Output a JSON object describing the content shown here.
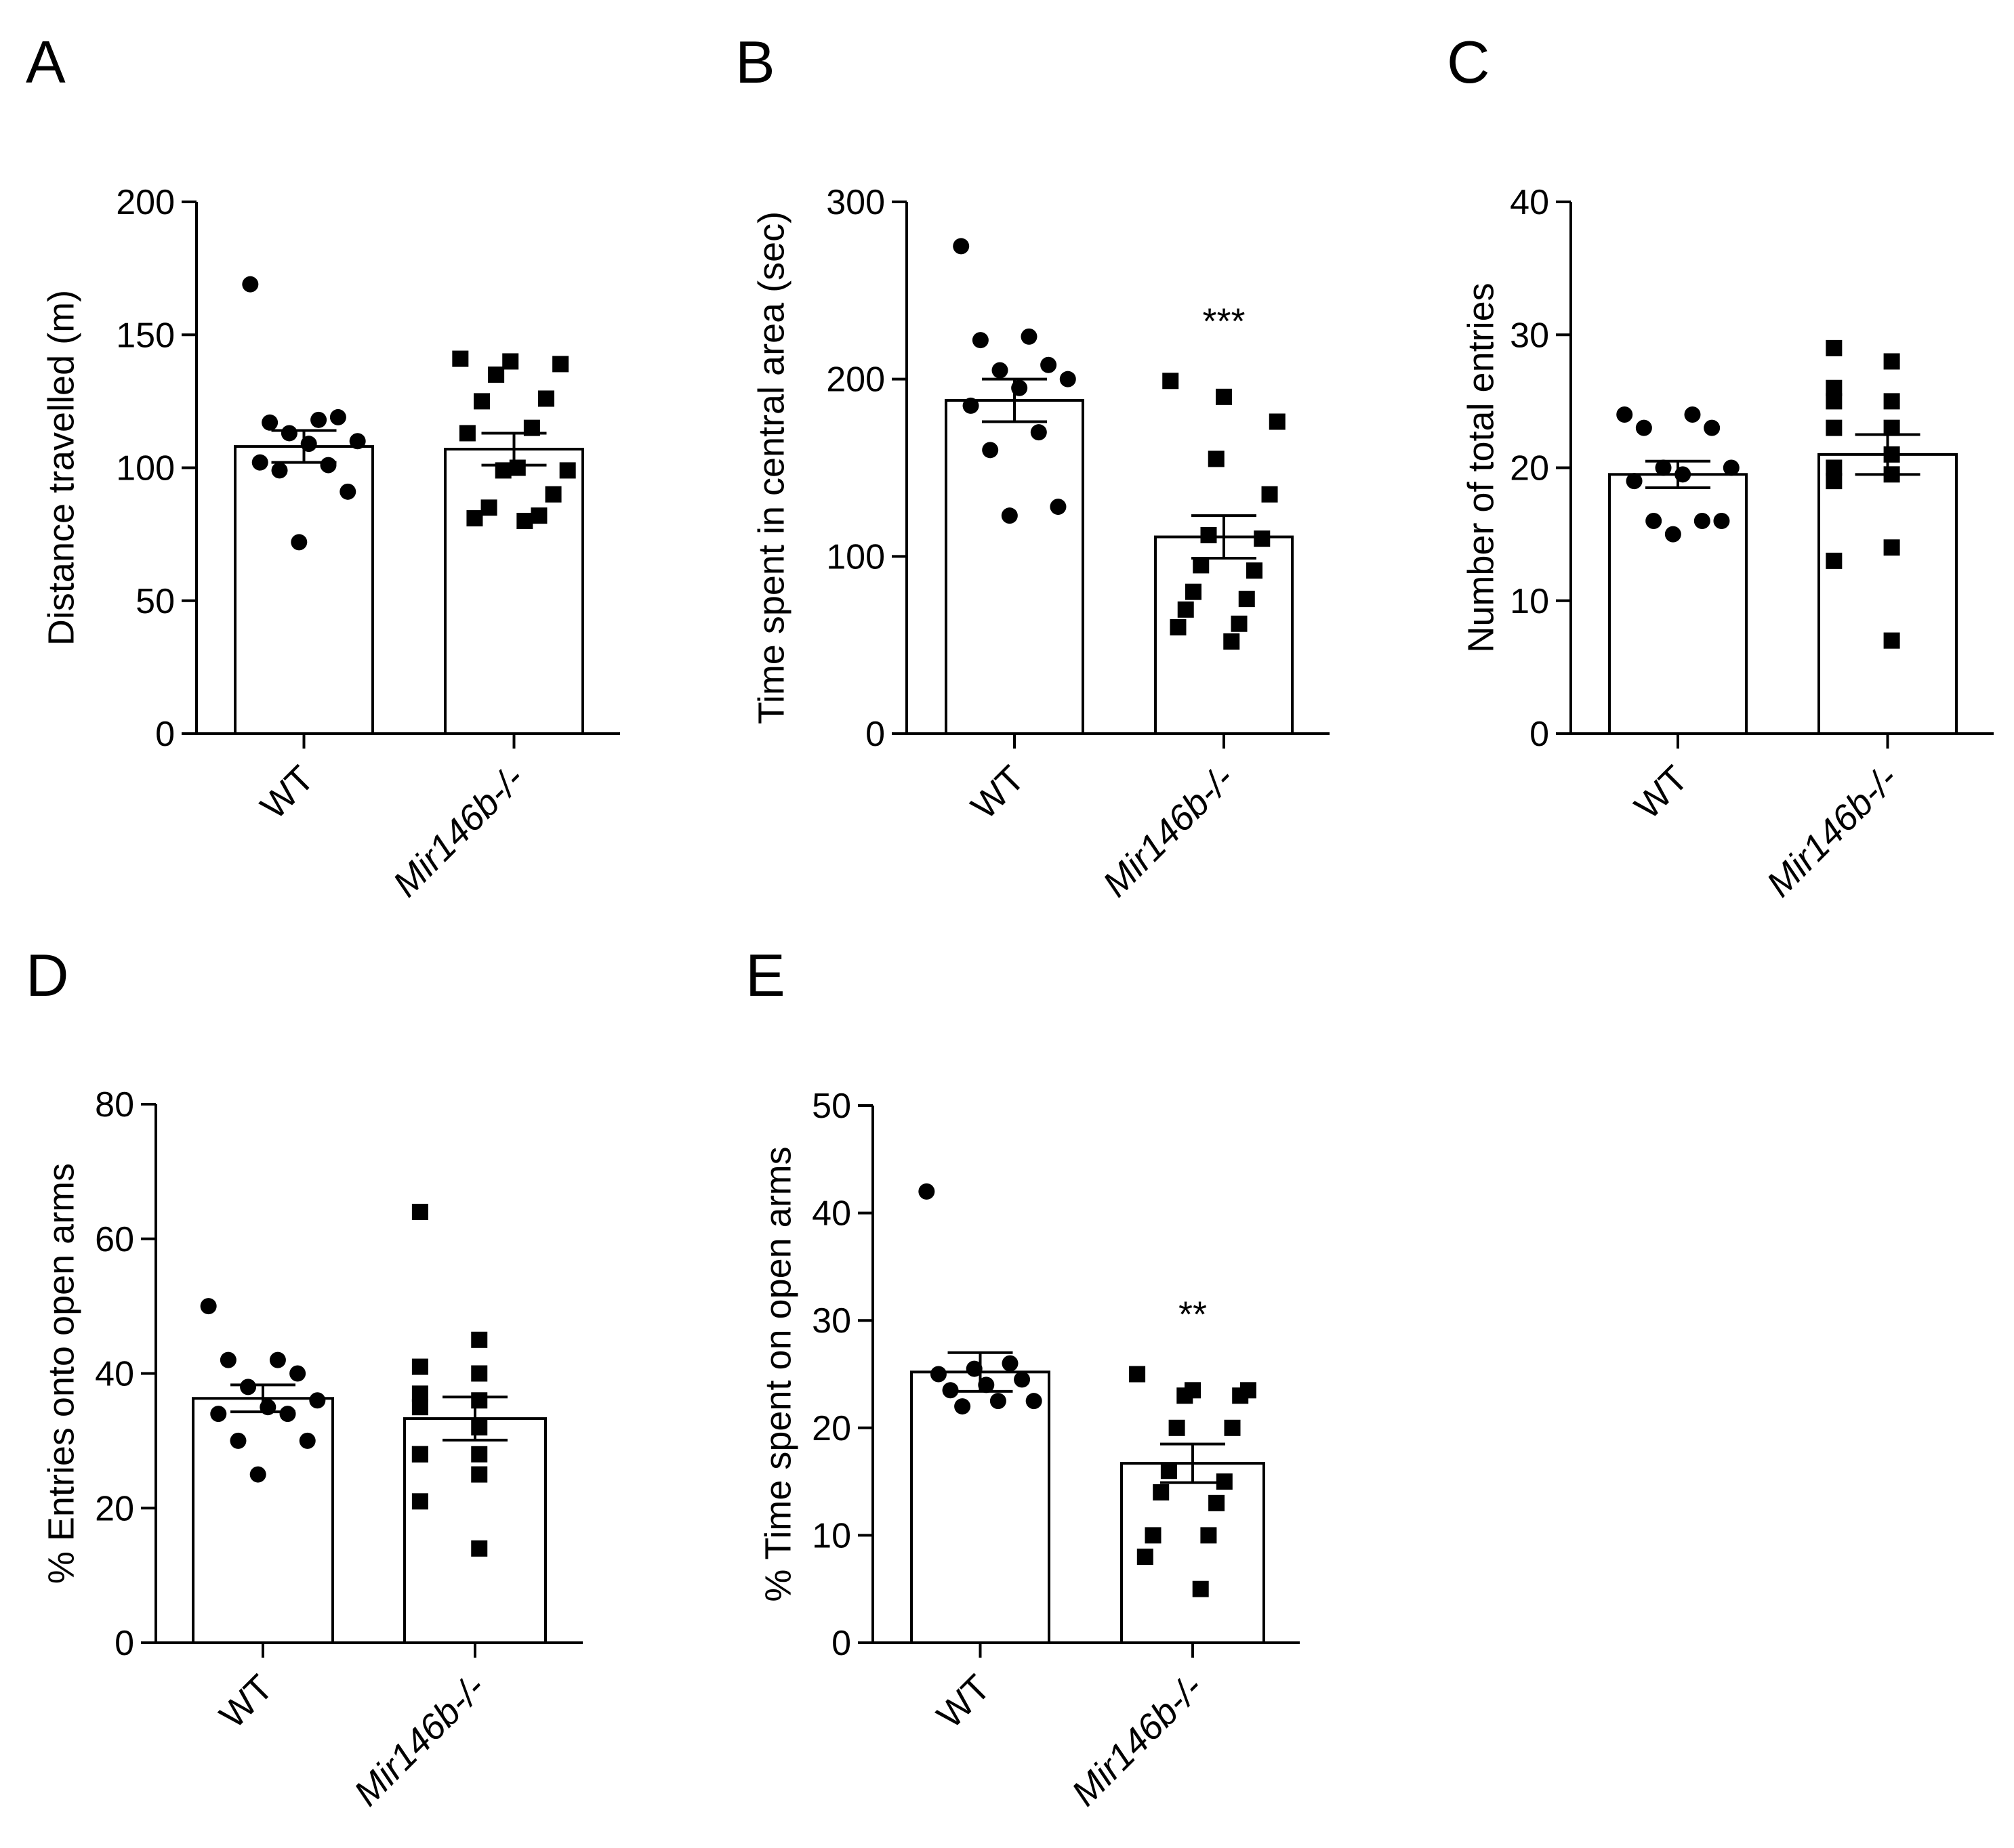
{
  "chart_data": [
    {
      "type": "bar",
      "panel": "A",
      "ylabel": "Distance travelled (m)",
      "ylim": [
        0,
        200
      ],
      "yticks": [
        0,
        50,
        100,
        150,
        200
      ],
      "categories": [
        "WT",
        "Mir146b-/-"
      ],
      "values": [
        108,
        107
      ],
      "sem": [
        6,
        6
      ],
      "significance": [
        "",
        ""
      ],
      "points": [
        [
          169,
          118,
          117,
          119,
          113,
          110,
          109,
          102,
          101,
          99,
          91,
          72
        ],
        [
          141,
          140,
          139,
          135,
          126,
          125,
          115,
          113,
          100,
          99,
          99,
          90,
          85,
          82,
          81,
          80
        ]
      ]
    },
    {
      "type": "bar",
      "panel": "B",
      "ylabel": "Time spent in central area (sec)",
      "ylim": [
        0,
        300
      ],
      "yticks": [
        0,
        100,
        200,
        300
      ],
      "categories": [
        "WT",
        "Mir146b-/-"
      ],
      "values": [
        188,
        111
      ],
      "sem": [
        12,
        12
      ],
      "significance": [
        "",
        "***"
      ],
      "points": [
        [
          275,
          224,
          222,
          208,
          205,
          200,
          195,
          185,
          170,
          160,
          128,
          123
        ],
        [
          199,
          190,
          176,
          155,
          135,
          112,
          110,
          95,
          92,
          80,
          76,
          70,
          62,
          60,
          52
        ]
      ]
    },
    {
      "type": "bar",
      "panel": "C",
      "ylabel": "Number of total entries",
      "ylim": [
        0,
        40
      ],
      "yticks": [
        0,
        10,
        20,
        30,
        40
      ],
      "categories": [
        "WT",
        "Mir146b-/-"
      ],
      "values": [
        19.5,
        21
      ],
      "sem": [
        1,
        1.5
      ],
      "significance": [
        "",
        ""
      ],
      "points": [
        [
          24,
          24,
          23,
          23,
          20,
          20,
          19.5,
          19,
          16,
          16,
          16,
          15
        ],
        [
          29,
          28,
          26,
          25,
          25,
          23,
          23,
          21,
          20,
          19.5,
          19,
          14,
          13,
          7
        ]
      ]
    },
    {
      "type": "bar",
      "panel": "D",
      "ylabel": "% Entries onto open arms",
      "ylim": [
        0,
        80
      ],
      "yticks": [
        0,
        20,
        40,
        60,
        80
      ],
      "categories": [
        "WT",
        "Mir146b-/-"
      ],
      "values": [
        36.3,
        33.3
      ],
      "sem": [
        2,
        3.2
      ],
      "significance": [
        "",
        ""
      ],
      "points": [
        [
          50,
          42,
          42,
          40,
          38,
          36,
          35,
          34,
          34,
          30,
          30,
          25
        ],
        [
          64,
          45,
          41,
          40,
          37,
          36,
          35,
          32,
          28,
          28,
          28,
          25,
          21,
          14
        ]
      ]
    },
    {
      "type": "bar",
      "panel": "E",
      "ylabel": "% Time spent on open arms",
      "ylim": [
        0,
        50
      ],
      "yticks": [
        0,
        10,
        20,
        30,
        40,
        50
      ],
      "categories": [
        "WT",
        "Mir146b-/-"
      ],
      "values": [
        25.2,
        16.7
      ],
      "sem": [
        1.8,
        1.8
      ],
      "significance": [
        "",
        "**"
      ],
      "points": [
        [
          42,
          26,
          25.5,
          25,
          24.5,
          24,
          23.5,
          22.5,
          22.5,
          22
        ],
        [
          25,
          23.5,
          23.5,
          23,
          23,
          20,
          20,
          16,
          15,
          14,
          13,
          10,
          10,
          8,
          5
        ]
      ]
    }
  ]
}
